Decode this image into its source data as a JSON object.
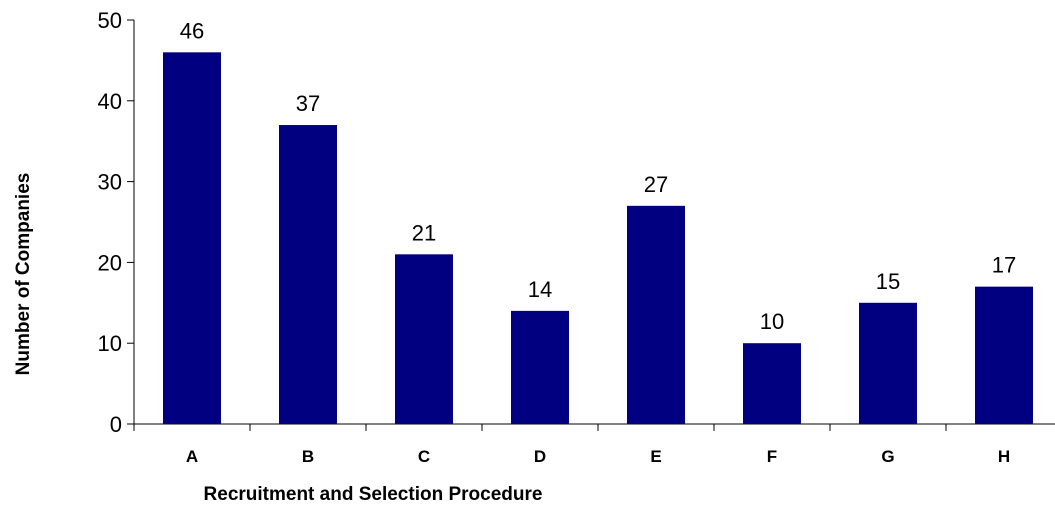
{
  "chart_data": {
    "type": "bar",
    "categories": [
      "A",
      "B",
      "C",
      "D",
      "E",
      "F",
      "G",
      "H"
    ],
    "values": [
      46,
      37,
      21,
      14,
      27,
      10,
      15,
      17
    ],
    "title": "",
    "xlabel": "Recruitment and Selection Procedure",
    "ylabel": "Number of Companies",
    "ylim": [
      0,
      50
    ],
    "yticks": [
      0,
      10,
      20,
      30,
      40,
      50
    ],
    "grid": false,
    "legend": "none",
    "bar_color": "#000080"
  }
}
